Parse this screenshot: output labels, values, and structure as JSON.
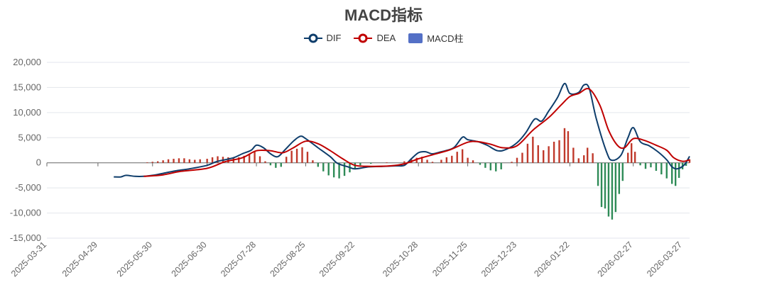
{
  "chart_data": {
    "type": "bar+line",
    "title": "MACD指标",
    "legend": [
      "DIF",
      "DEA",
      "MACD柱"
    ],
    "colors": {
      "DIF": "#0e3d6b",
      "DEA": "#c00000",
      "MACD柱_positive": "#c0392b",
      "MACD柱_negative": "#2e8b57",
      "MACD柱_legend": "#5470c6"
    },
    "ylim": [
      -15000,
      20000
    ],
    "y_ticks": [
      "20,000",
      "15,000",
      "10,000",
      "5,000",
      "0",
      "-5,000",
      "-10,000",
      "-15,000"
    ],
    "x_tick_labels": [
      "2025-03-31",
      "2025-04-29",
      "2025-05-30",
      "2025-06-30",
      "2025-07-28",
      "2025-08-25",
      "2025-09-22",
      "2025-10-28",
      "2025-11-25",
      "2025-12-23",
      "2026-01-22",
      "2026-02-27",
      "2026-03-27"
    ],
    "grid": true,
    "legend_placement": "top-center",
    "series": [
      {
        "name": "DIF",
        "points": [
          [
            "2025-05-08",
            -2800
          ],
          [
            "2025-05-12",
            -2800
          ],
          [
            "2025-05-15",
            -2500
          ],
          [
            "2025-05-20",
            -2700
          ],
          [
            "2025-05-25",
            -2700
          ],
          [
            "2025-05-30",
            -2500
          ],
          [
            "2025-06-05",
            -2100
          ],
          [
            "2025-06-12",
            -1600
          ],
          [
            "2025-06-20",
            -1200
          ],
          [
            "2025-06-30",
            -500
          ],
          [
            "2025-07-05",
            200
          ],
          [
            "2025-07-10",
            600
          ],
          [
            "2025-07-15",
            1000
          ],
          [
            "2025-07-20",
            1800
          ],
          [
            "2025-07-25",
            2500
          ],
          [
            "2025-07-28",
            3500
          ],
          [
            "2025-08-01",
            3000
          ],
          [
            "2025-08-05",
            1800
          ],
          [
            "2025-08-09",
            1200
          ],
          [
            "2025-08-13",
            2500
          ],
          [
            "2025-08-18",
            4300
          ],
          [
            "2025-08-22",
            5300
          ],
          [
            "2025-08-25",
            4800
          ],
          [
            "2025-09-01",
            3000
          ],
          [
            "2025-09-08",
            1200
          ],
          [
            "2025-09-12",
            -100
          ],
          [
            "2025-09-18",
            -800
          ],
          [
            "2025-09-22",
            -1200
          ],
          [
            "2025-09-30",
            -800
          ],
          [
            "2025-10-08",
            -700
          ],
          [
            "2025-10-15",
            -600
          ],
          [
            "2025-10-20",
            -500
          ],
          [
            "2025-10-24",
            800
          ],
          [
            "2025-10-28",
            2000
          ],
          [
            "2025-11-01",
            2200
          ],
          [
            "2025-11-05",
            1800
          ],
          [
            "2025-11-10",
            2200
          ],
          [
            "2025-11-17",
            3000
          ],
          [
            "2025-11-22",
            5100
          ],
          [
            "2025-11-25",
            4600
          ],
          [
            "2025-12-01",
            4200
          ],
          [
            "2025-12-06",
            3500
          ],
          [
            "2025-12-12",
            2400
          ],
          [
            "2025-12-17",
            2700
          ],
          [
            "2025-12-23",
            4000
          ],
          [
            "2025-12-28",
            6000
          ],
          [
            "2026-01-02",
            8700
          ],
          [
            "2026-01-06",
            8300
          ],
          [
            "2026-01-10",
            10300
          ],
          [
            "2026-01-15",
            13000
          ],
          [
            "2026-01-19",
            15800
          ],
          [
            "2026-01-22",
            13800
          ],
          [
            "2026-01-27",
            14000
          ],
          [
            "2026-01-30",
            15500
          ],
          [
            "2026-02-02",
            14800
          ],
          [
            "2026-02-06",
            8800
          ],
          [
            "2026-02-12",
            2000
          ],
          [
            "2026-02-15",
            500
          ],
          [
            "2026-02-20",
            1500
          ],
          [
            "2026-02-24",
            5000
          ],
          [
            "2026-02-27",
            7000
          ],
          [
            "2026-03-03",
            4200
          ],
          [
            "2026-03-08",
            3400
          ],
          [
            "2026-03-13",
            2200
          ],
          [
            "2026-03-18",
            600
          ],
          [
            "2026-03-21",
            -800
          ],
          [
            "2026-03-24",
            -1200
          ],
          [
            "2026-03-28",
            -400
          ],
          [
            "2026-03-31",
            1300
          ]
        ]
      },
      {
        "name": "DEA",
        "points": [
          [
            "2025-05-25",
            -2700
          ],
          [
            "2025-06-05",
            -2400
          ],
          [
            "2025-06-15",
            -1700
          ],
          [
            "2025-06-30",
            -1100
          ],
          [
            "2025-07-10",
            200
          ],
          [
            "2025-07-20",
            1000
          ],
          [
            "2025-07-28",
            2400
          ],
          [
            "2025-08-05",
            2400
          ],
          [
            "2025-08-12",
            2000
          ],
          [
            "2025-08-18",
            3000
          ],
          [
            "2025-08-25",
            4300
          ],
          [
            "2025-09-01",
            3800
          ],
          [
            "2025-09-08",
            2400
          ],
          [
            "2025-09-15",
            800
          ],
          [
            "2025-09-22",
            -500
          ],
          [
            "2025-10-01",
            -700
          ],
          [
            "2025-10-12",
            -600
          ],
          [
            "2025-10-20",
            -200
          ],
          [
            "2025-10-28",
            800
          ],
          [
            "2025-11-05",
            1600
          ],
          [
            "2025-11-15",
            2600
          ],
          [
            "2025-11-25",
            4100
          ],
          [
            "2025-12-01",
            4200
          ],
          [
            "2025-12-08",
            3700
          ],
          [
            "2025-12-15",
            3000
          ],
          [
            "2025-12-23",
            3400
          ],
          [
            "2026-01-01",
            6500
          ],
          [
            "2026-01-10",
            9000
          ],
          [
            "2026-01-17",
            11500
          ],
          [
            "2026-01-22",
            13200
          ],
          [
            "2026-01-27",
            13800
          ],
          [
            "2026-02-02",
            14700
          ],
          [
            "2026-02-08",
            11500
          ],
          [
            "2026-02-13",
            6500
          ],
          [
            "2026-02-18",
            3500
          ],
          [
            "2026-02-22",
            3000
          ],
          [
            "2026-02-27",
            4800
          ],
          [
            "2026-03-05",
            4500
          ],
          [
            "2026-03-12",
            3500
          ],
          [
            "2026-03-18",
            2500
          ],
          [
            "2026-03-22",
            1000
          ],
          [
            "2026-03-27",
            300
          ],
          [
            "2026-03-31",
            600
          ]
        ]
      },
      {
        "name": "MACD柱",
        "kind": "bar",
        "points": [
          [
            "2025-05-27",
            100
          ],
          [
            "2025-05-30",
            200
          ],
          [
            "2025-06-02",
            300
          ],
          [
            "2025-06-05",
            500
          ],
          [
            "2025-06-08",
            700
          ],
          [
            "2025-06-11",
            800
          ],
          [
            "2025-06-14",
            900
          ],
          [
            "2025-06-17",
            900
          ],
          [
            "2025-06-20",
            700
          ],
          [
            "2025-06-23",
            600
          ],
          [
            "2025-06-26",
            700
          ],
          [
            "2025-06-30",
            800
          ],
          [
            "2025-07-03",
            1100
          ],
          [
            "2025-07-06",
            1300
          ],
          [
            "2025-07-09",
            1200
          ],
          [
            "2025-07-12",
            1100
          ],
          [
            "2025-07-15",
            900
          ],
          [
            "2025-07-18",
            1100
          ],
          [
            "2025-07-21",
            1400
          ],
          [
            "2025-07-24",
            1800
          ],
          [
            "2025-07-27",
            2200
          ],
          [
            "2025-07-30",
            1300
          ],
          [
            "2025-08-02",
            300
          ],
          [
            "2025-08-05",
            -500
          ],
          [
            "2025-08-08",
            -1000
          ],
          [
            "2025-08-11",
            -800
          ],
          [
            "2025-08-14",
            1200
          ],
          [
            "2025-08-17",
            2400
          ],
          [
            "2025-08-20",
            2800
          ],
          [
            "2025-08-23",
            3100
          ],
          [
            "2025-08-26",
            2200
          ],
          [
            "2025-08-29",
            500
          ],
          [
            "2025-09-01",
            -800
          ],
          [
            "2025-09-04",
            -1700
          ],
          [
            "2025-09-07",
            -2500
          ],
          [
            "2025-09-10",
            -2900
          ],
          [
            "2025-09-13",
            -3100
          ],
          [
            "2025-09-16",
            -2600
          ],
          [
            "2025-09-19",
            -1900
          ],
          [
            "2025-09-22",
            -1300
          ],
          [
            "2025-09-25",
            -500
          ],
          [
            "2025-10-01",
            -200
          ],
          [
            "2025-10-10",
            100
          ],
          [
            "2025-10-20",
            300
          ],
          [
            "2025-10-24",
            700
          ],
          [
            "2025-10-27",
            1000
          ],
          [
            "2025-10-30",
            1200
          ],
          [
            "2025-11-02",
            600
          ],
          [
            "2025-11-05",
            200
          ],
          [
            "2025-11-10",
            600
          ],
          [
            "2025-11-13",
            1100
          ],
          [
            "2025-11-16",
            1400
          ],
          [
            "2025-11-19",
            2200
          ],
          [
            "2025-11-22",
            2700
          ],
          [
            "2025-11-25",
            1000
          ],
          [
            "2025-11-28",
            500
          ],
          [
            "2025-12-02",
            -400
          ],
          [
            "2025-12-05",
            -1000
          ],
          [
            "2025-12-08",
            -1500
          ],
          [
            "2025-12-11",
            -1700
          ],
          [
            "2025-12-14",
            -1300
          ],
          [
            "2025-12-20",
            200
          ],
          [
            "2025-12-23",
            1000
          ],
          [
            "2025-12-26",
            2000
          ],
          [
            "2025-12-29",
            3800
          ],
          [
            "2026-01-01",
            5200
          ],
          [
            "2026-01-04",
            3500
          ],
          [
            "2026-01-07",
            2500
          ],
          [
            "2026-01-10",
            3300
          ],
          [
            "2026-01-13",
            4200
          ],
          [
            "2026-01-16",
            4500
          ],
          [
            "2026-01-19",
            6900
          ],
          [
            "2026-01-21",
            6300
          ],
          [
            "2026-01-24",
            3000
          ],
          [
            "2026-01-27",
            900
          ],
          [
            "2026-01-30",
            1500
          ],
          [
            "2026-02-01",
            3000
          ],
          [
            "2026-02-04",
            1900
          ],
          [
            "2026-02-07",
            -4600
          ],
          [
            "2026-02-09",
            -8800
          ],
          [
            "2026-02-11",
            -9100
          ],
          [
            "2026-02-13",
            -10700
          ],
          [
            "2026-02-15",
            -11300
          ],
          [
            "2026-02-17",
            -9800
          ],
          [
            "2026-02-19",
            -6200
          ],
          [
            "2026-02-21",
            -3600
          ],
          [
            "2026-02-24",
            2000
          ],
          [
            "2026-02-26",
            3900
          ],
          [
            "2026-02-28",
            2200
          ],
          [
            "2026-03-03",
            -500
          ],
          [
            "2026-03-06",
            -1200
          ],
          [
            "2026-03-09",
            -900
          ],
          [
            "2026-03-12",
            -1600
          ],
          [
            "2026-03-15",
            -2300
          ],
          [
            "2026-03-18",
            -3100
          ],
          [
            "2026-03-21",
            -4200
          ],
          [
            "2026-03-23",
            -4600
          ],
          [
            "2026-03-25",
            -3000
          ],
          [
            "2026-03-27",
            -1300
          ],
          [
            "2026-03-29",
            -600
          ],
          [
            "2026-03-31",
            700
          ]
        ]
      }
    ]
  }
}
